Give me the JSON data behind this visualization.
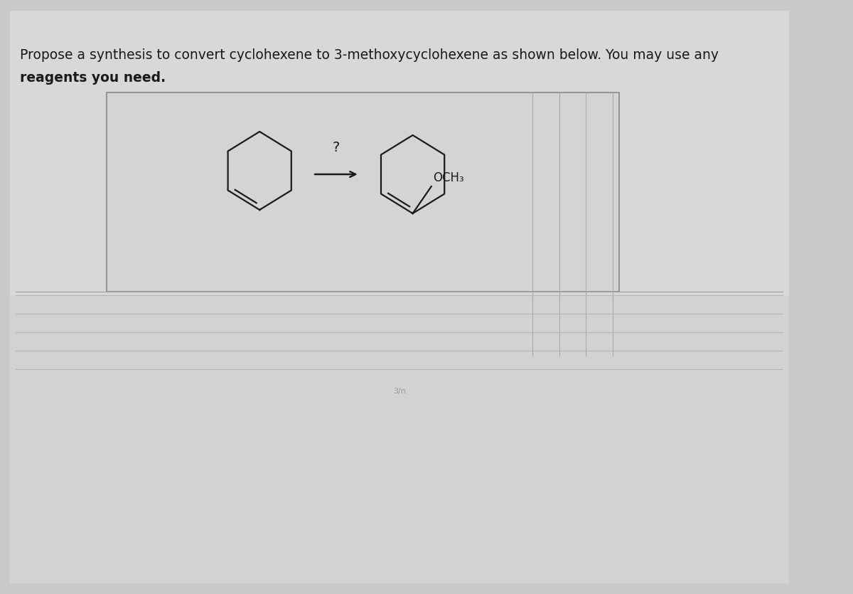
{
  "bg_color": "#c9c9c9",
  "paper_light_color": "#d8d8d8",
  "paper_box_color": "#d0d0d0",
  "line_color": "#1a1a1a",
  "text_color": "#1a1a1a",
  "ruled_line_color": "#b5b5b5",
  "box_edge_color": "#909090",
  "question_text_line1": "Propose a synthesis to convert cyclohexene to 3-methoxycyclohexene as shown below. You may use any",
  "question_text_line2": "reagents you need.",
  "question_font_size": 13.5,
  "arrow_label": "?",
  "product_label": "OCH₃",
  "fig_width": 12.0,
  "fig_height": 8.35
}
